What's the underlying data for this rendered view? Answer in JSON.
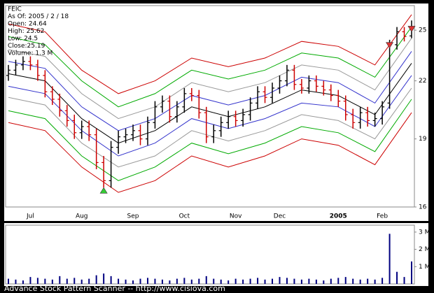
{
  "chart_data": {
    "type": "ohlc",
    "info": [
      "FEIC",
      "As Of: 2005 / 2 / 18",
      "Open: 24.64",
      "High: 25.62",
      "Low: 24.5",
      "Close:25.19",
      "Volume: 1.3 M"
    ],
    "footer": "Advance Stock Pattern Scanner -- http://www.cisiova.com",
    "categories": [
      null,
      null,
      null,
      "Jul",
      null,
      null,
      null,
      null,
      null,
      null,
      "Aug",
      null,
      null,
      null,
      null,
      null,
      null,
      "Sep",
      null,
      null,
      null,
      null,
      null,
      null,
      "Oct",
      null,
      null,
      null,
      null,
      null,
      null,
      "Nov",
      null,
      null,
      null,
      null,
      null,
      "Dec",
      null,
      null,
      null,
      null,
      null,
      null,
      null,
      "2005",
      null,
      null,
      null,
      null,
      null,
      "Feb",
      null,
      null,
      null,
      null
    ],
    "open": [
      22.3,
      22.6,
      22.9,
      23.1,
      22.9,
      22.3,
      21.4,
      21.0,
      20.4,
      19.9,
      19.3,
      19.6,
      19.2,
      17.9,
      17.1,
      18.6,
      19.1,
      19.2,
      19.4,
      19.0,
      19.8,
      20.6,
      20.9,
      20.1,
      20.6,
      21.3,
      21.2,
      20.3,
      19.1,
      19.4,
      19.8,
      20.1,
      19.9,
      20.2,
      20.8,
      21.4,
      21.1,
      21.6,
      22.0,
      22.6,
      21.8,
      21.6,
      22.0,
      21.7,
      21.5,
      21.2,
      20.9,
      20.2,
      19.8,
      20.3,
      19.9,
      20.0,
      20.8,
      24.1,
      24.9,
      24.64
    ],
    "high": [
      22.9,
      23.2,
      23.4,
      23.4,
      23.2,
      22.6,
      21.7,
      21.3,
      20.7,
      20.2,
      19.9,
      19.9,
      19.5,
      18.2,
      18.9,
      19.4,
      19.5,
      19.7,
      19.7,
      20.1,
      20.9,
      21.2,
      21.2,
      20.9,
      21.6,
      21.6,
      21.5,
      20.6,
      19.7,
      20.1,
      20.4,
      20.4,
      20.5,
      21.1,
      21.7,
      21.7,
      21.9,
      22.3,
      22.9,
      22.9,
      22.1,
      22.3,
      22.3,
      22.0,
      21.8,
      21.5,
      21.2,
      20.5,
      20.6,
      20.6,
      20.3,
      20.9,
      24.4,
      25.2,
      25.2,
      25.62
    ],
    "low": [
      22.0,
      22.3,
      22.6,
      22.6,
      22.0,
      21.1,
      20.7,
      20.1,
      19.6,
      19.0,
      19.0,
      18.9,
      17.6,
      16.8,
      16.8,
      18.3,
      18.8,
      18.9,
      18.7,
      18.7,
      19.5,
      20.3,
      19.8,
      19.8,
      20.3,
      20.9,
      20.0,
      18.8,
      18.8,
      19.1,
      19.5,
      19.6,
      19.6,
      19.9,
      20.5,
      20.8,
      20.8,
      21.3,
      21.7,
      21.5,
      21.3,
      21.3,
      21.4,
      21.2,
      20.9,
      20.6,
      19.9,
      19.5,
      19.5,
      19.6,
      19.6,
      19.7,
      20.5,
      23.8,
      24.3,
      24.5
    ],
    "close": [
      22.6,
      22.9,
      23.1,
      22.9,
      22.3,
      21.4,
      21.0,
      20.4,
      19.9,
      19.3,
      19.6,
      19.2,
      17.9,
      17.1,
      18.6,
      19.1,
      19.2,
      19.4,
      19.0,
      19.8,
      20.6,
      20.9,
      20.1,
      20.6,
      21.3,
      21.2,
      20.3,
      19.1,
      19.4,
      19.8,
      20.1,
      19.9,
      20.2,
      20.8,
      21.4,
      21.1,
      21.6,
      22.0,
      22.6,
      21.8,
      21.6,
      22.0,
      21.7,
      21.5,
      21.2,
      20.9,
      20.2,
      19.8,
      20.3,
      19.9,
      20.0,
      20.6,
      24.1,
      24.9,
      24.6,
      25.19
    ],
    "up_color": "#000000",
    "down_color": "#cc0000",
    "ylim": [
      16,
      26.6
    ],
    "yticks": [
      16,
      19,
      22,
      25
    ],
    "log_scale": true,
    "bands": {
      "x": [
        0,
        5,
        10,
        15,
        20,
        25,
        30,
        35,
        40,
        45,
        50,
        55
      ],
      "series": [
        {
          "color": "#cc0000",
          "values": [
            25.4,
            24.9,
            22.6,
            21.3,
            22.0,
            23.3,
            22.8,
            23.3,
            24.3,
            24.0,
            22.9,
            26.0
          ]
        },
        {
          "color": "#00aa00",
          "values": [
            24.6,
            24.1,
            22.0,
            20.6,
            21.3,
            22.6,
            22.1,
            22.6,
            23.6,
            23.3,
            22.2,
            25.2
          ]
        },
        {
          "color": "#999999",
          "values": [
            23.8,
            23.4,
            21.3,
            20.0,
            20.6,
            21.9,
            21.4,
            21.9,
            22.9,
            22.6,
            21.5,
            24.5
          ]
        },
        {
          "color": "#3333cc",
          "values": [
            23.1,
            22.7,
            20.6,
            19.4,
            20.0,
            21.2,
            20.7,
            21.2,
            22.2,
            21.9,
            20.8,
            23.7
          ]
        },
        {
          "color": "#000000",
          "values": [
            22.4,
            22.0,
            20.0,
            18.8,
            19.4,
            20.6,
            20.1,
            20.6,
            21.5,
            21.2,
            20.2,
            23.0
          ]
        },
        {
          "color": "#3333cc",
          "values": [
            21.7,
            21.3,
            19.4,
            18.2,
            18.8,
            20.0,
            19.5,
            20.0,
            20.8,
            20.6,
            19.6,
            22.3
          ]
        },
        {
          "color": "#999999",
          "values": [
            21.1,
            20.7,
            18.8,
            17.7,
            18.2,
            19.4,
            18.9,
            19.4,
            20.2,
            19.9,
            19.0,
            21.6
          ]
        },
        {
          "color": "#00aa00",
          "values": [
            20.4,
            20.0,
            18.2,
            17.1,
            17.7,
            18.8,
            18.3,
            18.8,
            19.6,
            19.3,
            18.4,
            21.0
          ]
        },
        {
          "color": "#cc0000",
          "values": [
            19.8,
            19.4,
            17.7,
            16.6,
            17.1,
            18.2,
            17.7,
            18.2,
            19.0,
            18.7,
            17.8,
            20.3
          ]
        }
      ]
    },
    "signals": [
      {
        "index": 13,
        "value": 16.8,
        "shape": "up",
        "color": "#33cc33"
      },
      {
        "index": 52,
        "value": 23.9,
        "shape": "down",
        "color": "#dd3333"
      },
      {
        "index": 55,
        "value": 24.9,
        "shape": "down",
        "color": "#dd3333"
      }
    ],
    "volume": {
      "color": "#000080",
      "values": [
        300000,
        250000,
        200000,
        400000,
        350000,
        300000,
        250000,
        450000,
        300000,
        350000,
        250000,
        300000,
        500000,
        600000,
        450000,
        300000,
        250000,
        200000,
        300000,
        350000,
        300000,
        250000,
        200000,
        300000,
        350000,
        250000,
        300000,
        450000,
        300000,
        250000,
        200000,
        300000,
        250000,
        300000,
        350000,
        250000,
        300000,
        400000,
        350000,
        300000,
        250000,
        300000,
        250000,
        200000,
        300000,
        350000,
        400000,
        300000,
        250000,
        300000,
        250000,
        350000,
        2900000,
        700000,
        400000,
        1300000
      ],
      "ylim": [
        0,
        3400000
      ],
      "yticks": [
        {
          "value": 1000000,
          "label": "1 M"
        },
        {
          "value": 2000000,
          "label": "2 M"
        },
        {
          "value": 3000000,
          "label": "3 M"
        }
      ]
    }
  }
}
